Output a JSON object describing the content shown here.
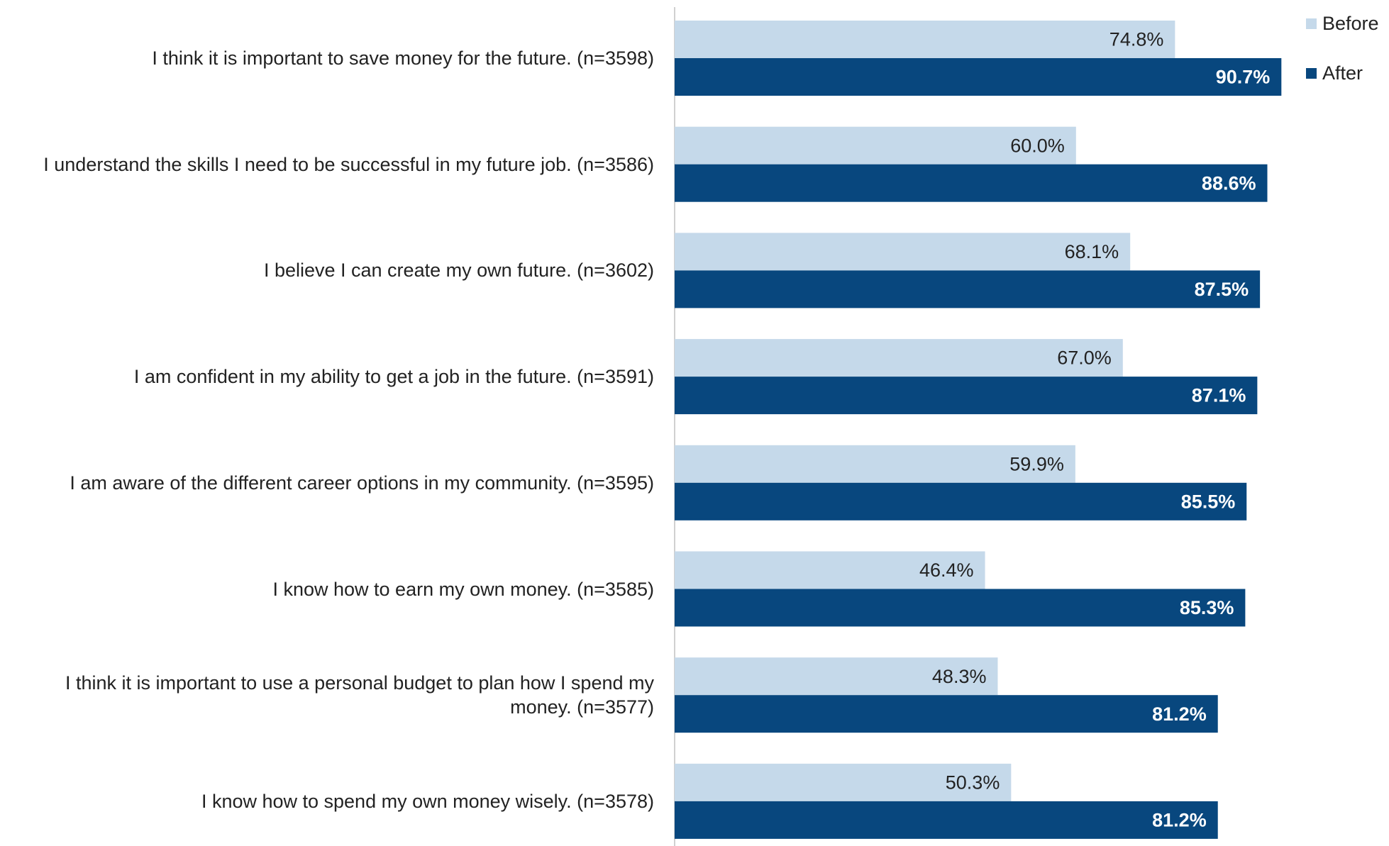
{
  "chart_data": {
    "type": "bar",
    "orientation": "horizontal",
    "categories": [
      "I think it is important to save money for the future. (n=3598)",
      "I understand the skills I need to be successful in my future job. (n=3586)",
      "I believe I can create my own future. (n=3602)",
      "I am confident in my ability to get a job in the future. (n=3591)",
      "I am aware of the different career options in my community. (n=3595)",
      "I know how to earn my own money. (n=3585)",
      "I think it is important to use a personal budget to plan how I spend my money. (n=3577)",
      "I know how to spend my own money wisely. (n=3578)"
    ],
    "series": [
      {
        "name": "Before",
        "color": "#c5d9ea",
        "values": [
          74.8,
          60.0,
          68.1,
          67.0,
          59.9,
          46.4,
          48.3,
          50.3
        ],
        "value_labels": [
          "74.8%",
          "60.0%",
          "68.1%",
          "67.0%",
          "59.9%",
          "46.4%",
          "48.3%",
          "50.3%"
        ]
      },
      {
        "name": "After",
        "color": "#08477e",
        "values": [
          90.7,
          88.6,
          87.5,
          87.1,
          85.5,
          85.3,
          81.2,
          81.2
        ],
        "value_labels": [
          "90.7%",
          "88.6%",
          "87.5%",
          "87.1%",
          "85.5%",
          "85.3%",
          "81.2%",
          "81.2%"
        ]
      }
    ],
    "legend": "top-right"
  }
}
